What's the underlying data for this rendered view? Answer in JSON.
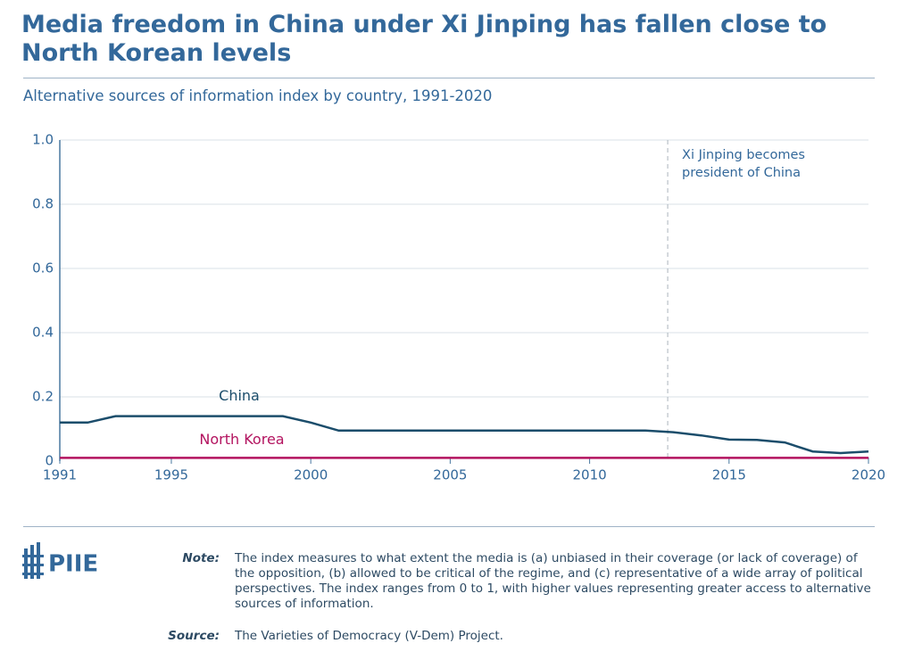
{
  "chart_data": {
    "type": "line",
    "title": "Media freedom in China under Xi Jinping has fallen close to North Korean levels",
    "subtitle": "Alternative sources of information index by country, 1991-2020",
    "x": [
      1991,
      1992,
      1993,
      1994,
      1995,
      1996,
      1997,
      1998,
      1999,
      2000,
      2001,
      2002,
      2003,
      2004,
      2005,
      2006,
      2007,
      2008,
      2009,
      2010,
      2011,
      2012,
      2013,
      2014,
      2015,
      2016,
      2017,
      2018,
      2019,
      2020
    ],
    "series": [
      {
        "name": "China",
        "color": "#1b4d6b",
        "values": [
          0.12,
          0.12,
          0.14,
          0.14,
          0.14,
          0.14,
          0.14,
          0.14,
          0.14,
          0.12,
          0.095,
          0.095,
          0.095,
          0.095,
          0.095,
          0.095,
          0.095,
          0.095,
          0.095,
          0.095,
          0.095,
          0.095,
          0.09,
          0.08,
          0.067,
          0.066,
          0.058,
          0.03,
          0.025,
          0.03
        ]
      },
      {
        "name": "North Korea",
        "color": "#b3135f",
        "values": [
          0.01,
          0.01,
          0.01,
          0.01,
          0.01,
          0.01,
          0.01,
          0.01,
          0.01,
          0.01,
          0.01,
          0.01,
          0.01,
          0.01,
          0.01,
          0.01,
          0.01,
          0.01,
          0.01,
          0.01,
          0.01,
          0.01,
          0.01,
          0.01,
          0.01,
          0.01,
          0.01,
          0.01,
          0.01,
          0.01
        ]
      }
    ],
    "xlim": [
      1991,
      2020
    ],
    "xticks": [
      1991,
      1995,
      2000,
      2005,
      2010,
      2015,
      2020
    ],
    "ylim": [
      0,
      1
    ],
    "yticks": [
      0,
      0.2,
      0.4,
      0.6,
      0.8,
      {
        "value": 1,
        "label": "1.0"
      }
    ],
    "grid": true,
    "annotation": {
      "text": "Xi Jinping becomes president of China",
      "x": 2012.8
    }
  },
  "footer": {
    "logo": "PIIE",
    "note_label": "Note:",
    "note": "The index measures to what extent the media is (a) unbiased in their coverage (or lack of coverage) of the opposition, (b) allowed to be critical of the regime, and (c) representative of a wide array of political perspectives. The index ranges from 0 to 1, with higher values representing greater access to alternative sources of information.",
    "source_label": "Source:",
    "source": "The Varieties of Democracy (V-Dem) Project."
  }
}
